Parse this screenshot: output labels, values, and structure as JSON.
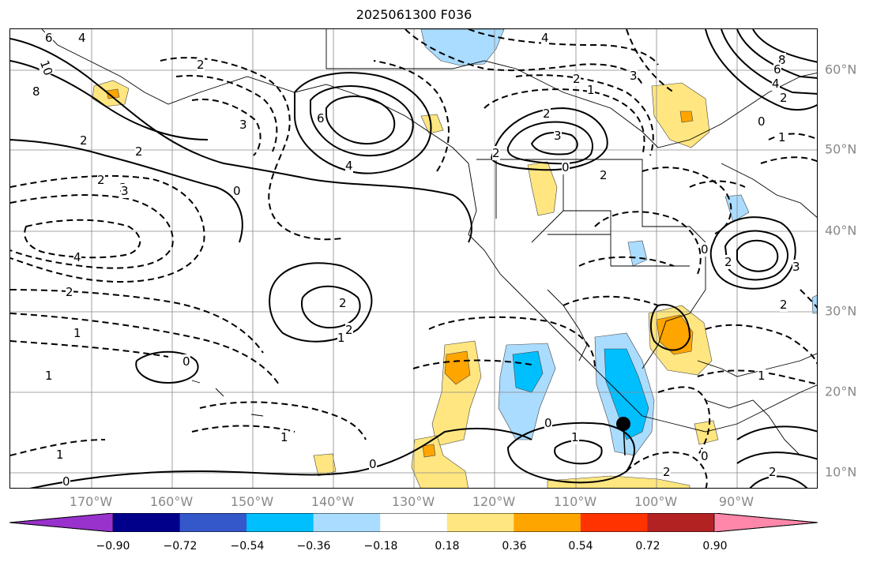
{
  "title": "2025061300 F036",
  "lon_labels": [
    "170°W",
    "160°W",
    "150°W",
    "140°W",
    "130°W",
    "120°W",
    "110°W",
    "100°W",
    "90°W"
  ],
  "lat_labels": [
    "60°N",
    "50°N",
    "40°N",
    "30°N",
    "20°N",
    "10°N"
  ],
  "colorbar": {
    "ticks": [
      "−0.90",
      "−0.72",
      "−0.54",
      "−0.36",
      "−0.18",
      "0.18",
      "0.36",
      "0.54",
      "0.72",
      "0.90"
    ],
    "colors": [
      "#9932cc",
      "#00008b",
      "#3457c9",
      "#00bfff",
      "#aadcff",
      "#ffffff",
      "#ffe680",
      "#ffa500",
      "#ff3300",
      "#b22222",
      "#ff88aa"
    ]
  },
  "contour_labels": [
    "6",
    "4",
    "10",
    "8",
    "2",
    "2",
    "3",
    "2",
    "0",
    "4",
    "2",
    "1",
    "1",
    "0",
    "0",
    "1",
    "1",
    "2",
    "0",
    "3",
    "6",
    "4",
    "3",
    "2",
    "1",
    "2",
    "3",
    "2",
    "3",
    "2",
    "4",
    "3",
    "8",
    "6",
    "4",
    "2",
    "0",
    "1",
    "2",
    "1",
    "2",
    "0",
    "2",
    "0",
    "1",
    "1",
    "0",
    "2",
    "0",
    "2",
    "3",
    "2"
  ],
  "marker": "storm-center"
}
